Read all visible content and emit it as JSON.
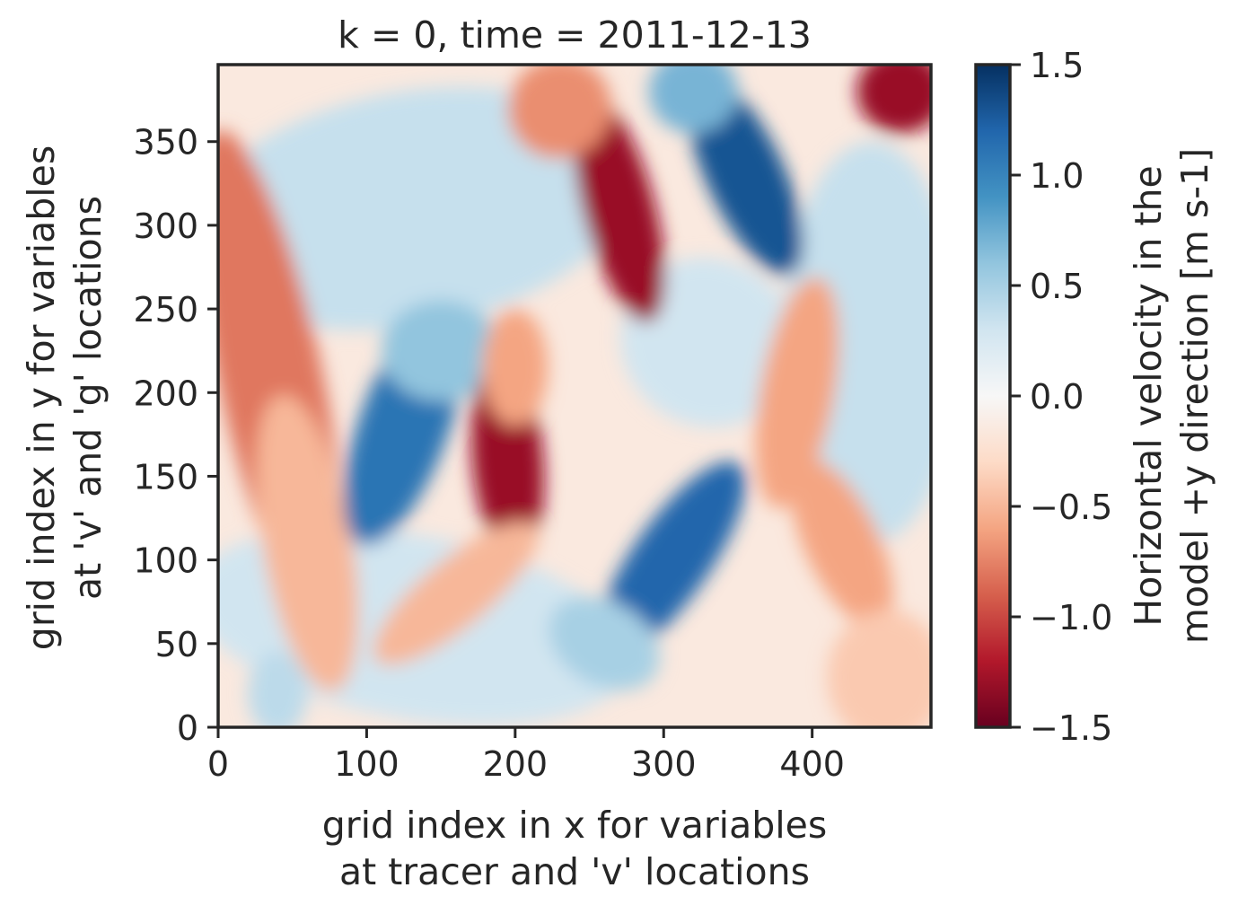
{
  "chart_data": {
    "type": "heatmap",
    "title": "k = 0, time = 2011-12-13",
    "xlabel": [
      "grid index in x for variables",
      "at tracer and 'v' locations"
    ],
    "ylabel": [
      "grid index in y for variables",
      "at 'v' and 'g' locations"
    ],
    "xlim": [
      0,
      480
    ],
    "ylim": [
      0,
      396
    ],
    "xticks": [
      0,
      100,
      200,
      300,
      400
    ],
    "xtick_labels": [
      "0",
      "100",
      "200",
      "300",
      "400"
    ],
    "yticks": [
      0,
      50,
      100,
      150,
      200,
      250,
      300,
      350
    ],
    "ytick_labels": [
      "0",
      "50",
      "100",
      "150",
      "200",
      "250",
      "300",
      "350"
    ],
    "colorbar": {
      "label": [
        "Horizontal velocity in the",
        "model +y direction [m s-1]"
      ],
      "vmin": -1.5,
      "vmax": 1.5,
      "colormap": "RdBu",
      "ticks": [
        -1.5,
        -1.0,
        -0.5,
        0.0,
        0.5,
        1.0,
        1.5
      ],
      "tick_labels": [
        "−1.5",
        "−1.0",
        "−0.5",
        "0.0",
        "0.5",
        "1.0",
        "1.5"
      ]
    },
    "features": [
      {
        "kind": "jet",
        "sign": "negative",
        "x": 270,
        "y": 310,
        "value": -1.3
      },
      {
        "kind": "jet",
        "sign": "positive",
        "x": 355,
        "y": 330,
        "value": 1.3
      },
      {
        "kind": "jet",
        "sign": "negative",
        "x": 195,
        "y": 160,
        "value": -1.3
      },
      {
        "kind": "jet",
        "sign": "positive",
        "x": 125,
        "y": 175,
        "value": 1.1
      },
      {
        "kind": "jet",
        "sign": "positive",
        "x": 305,
        "y": 100,
        "value": 1.2
      },
      {
        "kind": "jet",
        "sign": "negative",
        "x": 460,
        "y": 380,
        "value": -1.3
      },
      {
        "kind": "band",
        "sign": "negative",
        "x": 30,
        "y": 230,
        "value": -0.8
      },
      {
        "kind": "band",
        "sign": "negative",
        "x": 390,
        "y": 200,
        "value": -0.6
      }
    ]
  }
}
